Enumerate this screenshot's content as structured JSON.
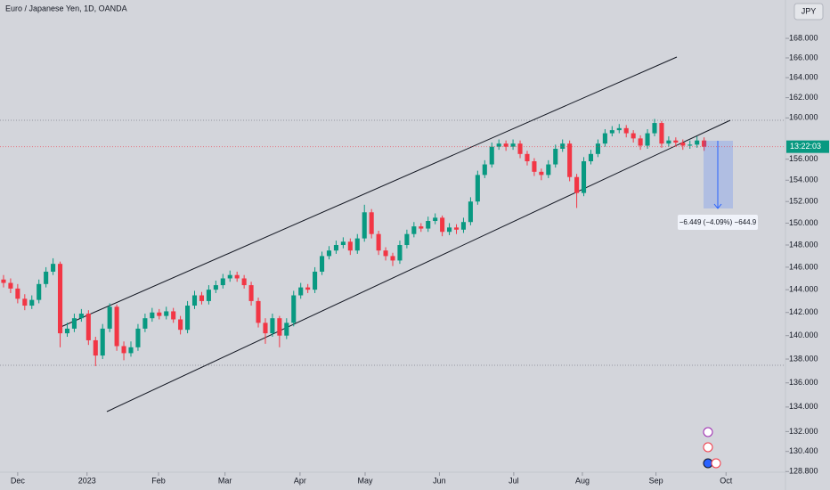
{
  "chart_data": {
    "type": "candlestick",
    "title": "Euro / Japanese Yen, 1D, OANDA",
    "currency": "JPY",
    "countdown_label": "13:22:03",
    "measure_label": "−6.449 (−4.09%) −644.9",
    "up_color": "#089981",
    "down_color": "#f23645",
    "log_scale": true,
    "open": [
      144.9,
      144.6,
      144.1,
      143.2,
      142.6,
      143.1,
      144.5,
      145.6,
      146.3,
      140.2,
      140.6,
      141.5,
      141.9,
      139.6,
      138.3,
      140.6,
      142.5,
      139.1,
      138.5,
      139.0,
      140.6,
      141.5,
      142.0,
      141.7,
      142.1,
      141.4,
      140.5,
      142.6,
      143.5,
      143.0,
      144.0,
      144.4,
      145.0,
      145.3,
      145.0,
      144.4,
      143.0,
      141.1,
      140.2,
      141.5,
      140.0,
      141.1,
      143.5,
      144.2,
      144.0,
      145.6,
      147.0,
      147.5,
      148.0,
      148.3,
      147.5,
      148.6,
      151.0,
      149.0,
      147.5,
      147.0,
      146.6,
      148.0,
      149.0,
      149.7,
      149.5,
      150.2,
      150.5,
      149.2,
      149.6,
      149.4,
      150.1,
      152.0,
      154.5,
      155.5,
      157.2,
      157.5,
      157.2,
      157.5,
      156.5,
      155.8,
      154.8,
      154.5,
      155.5,
      157.0,
      157.5,
      154.3,
      152.8,
      155.8,
      156.5,
      157.5,
      158.5,
      158.8,
      159.0,
      158.5,
      158.0,
      157.3,
      158.5,
      159.5,
      157.5,
      157.8,
      157.6,
      157.3,
      157.4,
      157.8
    ],
    "high": [
      145.3,
      145.0,
      144.5,
      143.6,
      143.5,
      144.9,
      146.0,
      146.8,
      146.5,
      141.1,
      141.9,
      142.3,
      142.2,
      139.9,
      141.0,
      142.8,
      142.7,
      139.5,
      139.5,
      141.0,
      141.9,
      142.4,
      142.3,
      142.5,
      142.4,
      141.7,
      143.0,
      143.9,
      143.8,
      144.4,
      144.8,
      145.4,
      145.7,
      145.6,
      145.3,
      144.7,
      143.3,
      141.5,
      141.9,
      141.7,
      141.5,
      143.9,
      144.6,
      144.5,
      146.0,
      147.4,
      147.9,
      148.4,
      148.7,
      148.6,
      149.0,
      151.7,
      151.3,
      149.3,
      147.8,
      147.3,
      148.4,
      149.4,
      150.1,
      150.0,
      150.6,
      150.9,
      150.7,
      150.0,
      149.9,
      150.5,
      152.4,
      154.9,
      155.9,
      157.6,
      157.9,
      157.8,
      157.9,
      157.8,
      156.8,
      156.1,
      155.1,
      155.9,
      157.4,
      157.9,
      157.8,
      154.6,
      156.2,
      156.9,
      157.9,
      158.9,
      159.2,
      159.4,
      159.3,
      158.8,
      158.3,
      158.9,
      159.9,
      159.7,
      158.2,
      158.1,
      157.9,
      157.8,
      158.2,
      158.1
    ],
    "low": [
      144.2,
      143.7,
      142.8,
      142.2,
      142.3,
      142.8,
      144.2,
      145.3,
      139.0,
      139.9,
      140.3,
      141.2,
      139.2,
      137.4,
      138.0,
      140.3,
      138.7,
      137.9,
      138.2,
      138.7,
      140.3,
      141.2,
      141.4,
      141.4,
      141.1,
      140.1,
      140.2,
      142.3,
      142.7,
      142.7,
      143.7,
      144.1,
      144.7,
      144.7,
      144.1,
      142.6,
      140.7,
      139.3,
      139.9,
      139.0,
      139.7,
      140.8,
      143.2,
      143.7,
      143.7,
      145.3,
      146.7,
      147.2,
      147.7,
      147.1,
      147.2,
      148.3,
      148.6,
      147.1,
      146.6,
      146.1,
      146.3,
      147.7,
      148.7,
      149.2,
      149.2,
      149.9,
      148.8,
      148.9,
      149.0,
      149.1,
      149.8,
      151.7,
      154.2,
      155.2,
      156.9,
      156.8,
      156.9,
      156.1,
      155.4,
      154.4,
      154.0,
      154.2,
      155.2,
      156.7,
      153.9,
      151.4,
      152.5,
      155.5,
      156.2,
      157.2,
      158.2,
      158.5,
      158.1,
      157.6,
      156.9,
      157.0,
      158.2,
      157.1,
      157.2,
      157.2,
      156.9,
      157.0,
      157.1,
      156.8
    ],
    "close": [
      144.6,
      144.1,
      143.2,
      142.6,
      143.1,
      144.5,
      145.6,
      146.3,
      140.2,
      140.6,
      141.5,
      141.9,
      139.6,
      138.3,
      140.6,
      142.5,
      139.1,
      138.5,
      139.0,
      140.6,
      141.5,
      142.0,
      141.7,
      142.1,
      141.4,
      140.5,
      142.6,
      143.5,
      143.0,
      144.0,
      144.4,
      145.0,
      145.3,
      145.0,
      144.4,
      143.0,
      141.1,
      140.2,
      141.5,
      140.0,
      141.1,
      143.5,
      144.2,
      144.0,
      145.6,
      147.0,
      147.5,
      148.0,
      148.3,
      147.5,
      148.6,
      151.0,
      149.0,
      147.5,
      147.0,
      146.6,
      148.0,
      149.0,
      149.7,
      149.5,
      150.2,
      150.5,
      149.2,
      149.6,
      149.4,
      150.1,
      152.0,
      154.5,
      155.5,
      157.2,
      157.5,
      157.2,
      157.5,
      156.5,
      155.8,
      154.8,
      154.5,
      155.5,
      157.0,
      157.5,
      154.3,
      152.8,
      155.8,
      156.5,
      157.5,
      158.5,
      158.8,
      159.0,
      158.5,
      158.0,
      157.3,
      158.5,
      159.5,
      157.5,
      157.8,
      157.6,
      157.3,
      157.4,
      157.8,
      157.2
    ],
    "ylim": [
      128.75,
      172.0
    ],
    "yticks": [
      {
        "value": 168,
        "label": "168.000"
      },
      {
        "value": 166,
        "label": "166.000"
      },
      {
        "value": 164,
        "label": "164.000"
      },
      {
        "value": 162,
        "label": "162.000"
      },
      {
        "value": 160,
        "label": "160.000"
      },
      {
        "value": 156,
        "label": "156.000"
      },
      {
        "value": 154,
        "label": "154.000"
      },
      {
        "value": 152,
        "label": "152.000"
      },
      {
        "value": 150,
        "label": "150.000"
      },
      {
        "value": 148,
        "label": "148.000"
      },
      {
        "value": 146,
        "label": "146.000"
      },
      {
        "value": 144,
        "label": "144.000"
      },
      {
        "value": 142,
        "label": "142.000"
      },
      {
        "value": 140,
        "label": "140.000"
      },
      {
        "value": 138,
        "label": "138.000"
      },
      {
        "value": 136,
        "label": "136.000"
      },
      {
        "value": 134,
        "label": "134.000"
      },
      {
        "value": 132,
        "label": "132.000"
      },
      {
        "value": 130.4,
        "label": "130.400"
      },
      {
        "value": 128.8,
        "label": "128.800"
      }
    ],
    "xlim": [
      0,
      111
    ],
    "xticks": [
      {
        "value": 2.5,
        "label": "Dec"
      },
      {
        "value": 12.3,
        "label": "2023"
      },
      {
        "value": 22.4,
        "label": "Feb"
      },
      {
        "value": 31.8,
        "label": "Mar"
      },
      {
        "value": 42.4,
        "label": "Apr"
      },
      {
        "value": 51.6,
        "label": "May"
      },
      {
        "value": 62.1,
        "label": "Jun"
      },
      {
        "value": 72.6,
        "label": "Jul"
      },
      {
        "value": 82.3,
        "label": "Aug"
      },
      {
        "value": 92.7,
        "label": "Sep"
      },
      {
        "value": 102.6,
        "label": "Oct"
      }
    ]
  }
}
